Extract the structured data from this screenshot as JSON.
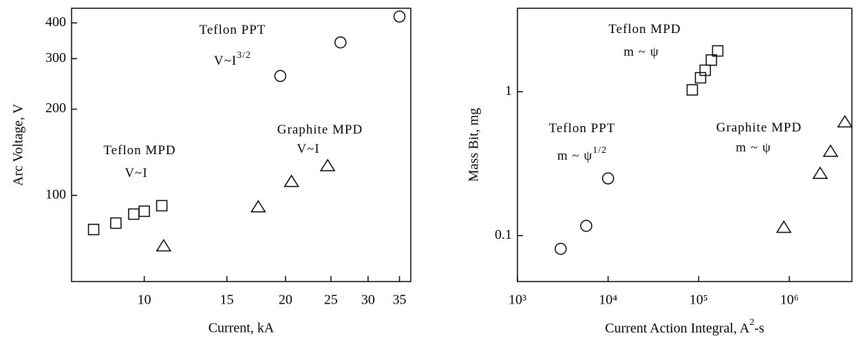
{
  "chart_data": [
    {
      "type": "scatter",
      "xlabel": "Current, kA",
      "ylabel": "Arc Voltage, V",
      "xscale": "log",
      "yscale": "log",
      "xlim": [
        7,
        37
      ],
      "ylim": [
        50,
        450
      ],
      "xticks": [
        10,
        15,
        20,
        25,
        30,
        35
      ],
      "yticks": [
        100,
        200,
        300,
        400
      ],
      "series": [
        {
          "marker": "square",
          "color": "#000000",
          "x": [
            7.8,
            8.7,
            9.5,
            10,
            10.9
          ],
          "values": [
            76,
            80,
            86,
            88,
            92
          ]
        },
        {
          "marker": "circle",
          "color": "#000000",
          "x": [
            19.5,
            26.2,
            35
          ],
          "values": [
            261,
            342,
            421
          ]
        },
        {
          "marker": "triangle",
          "color": "#000000",
          "x": [
            11.0,
            17.5,
            20.6,
            24.6
          ],
          "values": [
            66.5,
            91,
            111.6,
            126.7
          ]
        }
      ],
      "annotations": [
        {
          "text": "Teflon PPT"
        },
        {
          "text": "V~I",
          "sup": "3/2"
        },
        {
          "text": "Graphite MPD"
        },
        {
          "text": "V~I"
        },
        {
          "text": "Teflon MPD"
        },
        {
          "text": "V~I"
        }
      ]
    },
    {
      "type": "scatter",
      "xlabel": {
        "text": "Current Action Integral, A",
        "sup": "2",
        "after": "-s"
      },
      "ylabel": "Mass Bit, mg",
      "xscale": "log",
      "yscale": "log",
      "xlim": [
        1000,
        4900000
      ],
      "ylim": [
        0.048,
        3.8
      ],
      "xticks": [
        {
          "value": 1000,
          "label": "10³"
        },
        {
          "value": 10000,
          "label": "10⁴"
        },
        {
          "value": 100000,
          "label": "10⁵"
        },
        {
          "value": 1000000,
          "label": "10⁶"
        }
      ],
      "yticks": [
        0.1,
        1
      ],
      "series": [
        {
          "marker": "circle",
          "color": "#000000",
          "x": [
            3000,
            5740,
            10000
          ],
          "values": [
            0.081,
            0.117,
            0.25
          ]
        },
        {
          "marker": "square",
          "color": "#000000",
          "x": [
            84900,
            104700,
            118000,
            138000,
            162000
          ],
          "values": [
            1.03,
            1.25,
            1.41,
            1.66,
            1.92
          ]
        },
        {
          "marker": "triangle",
          "color": "#000000",
          "x": [
            870000,
            2190000,
            2850000,
            4100000
          ],
          "values": [
            0.114,
            0.27,
            0.384,
            0.615
          ]
        }
      ],
      "annotations": [
        {
          "text": "Teflon MPD"
        },
        {
          "text": "m ~ ψ"
        },
        {
          "text": "Teflon PPT"
        },
        {
          "text": "m ~ ψ",
          "sup": "1/2"
        },
        {
          "text": "Graphite MPD"
        },
        {
          "text": "m ~ ψ"
        }
      ]
    }
  ]
}
